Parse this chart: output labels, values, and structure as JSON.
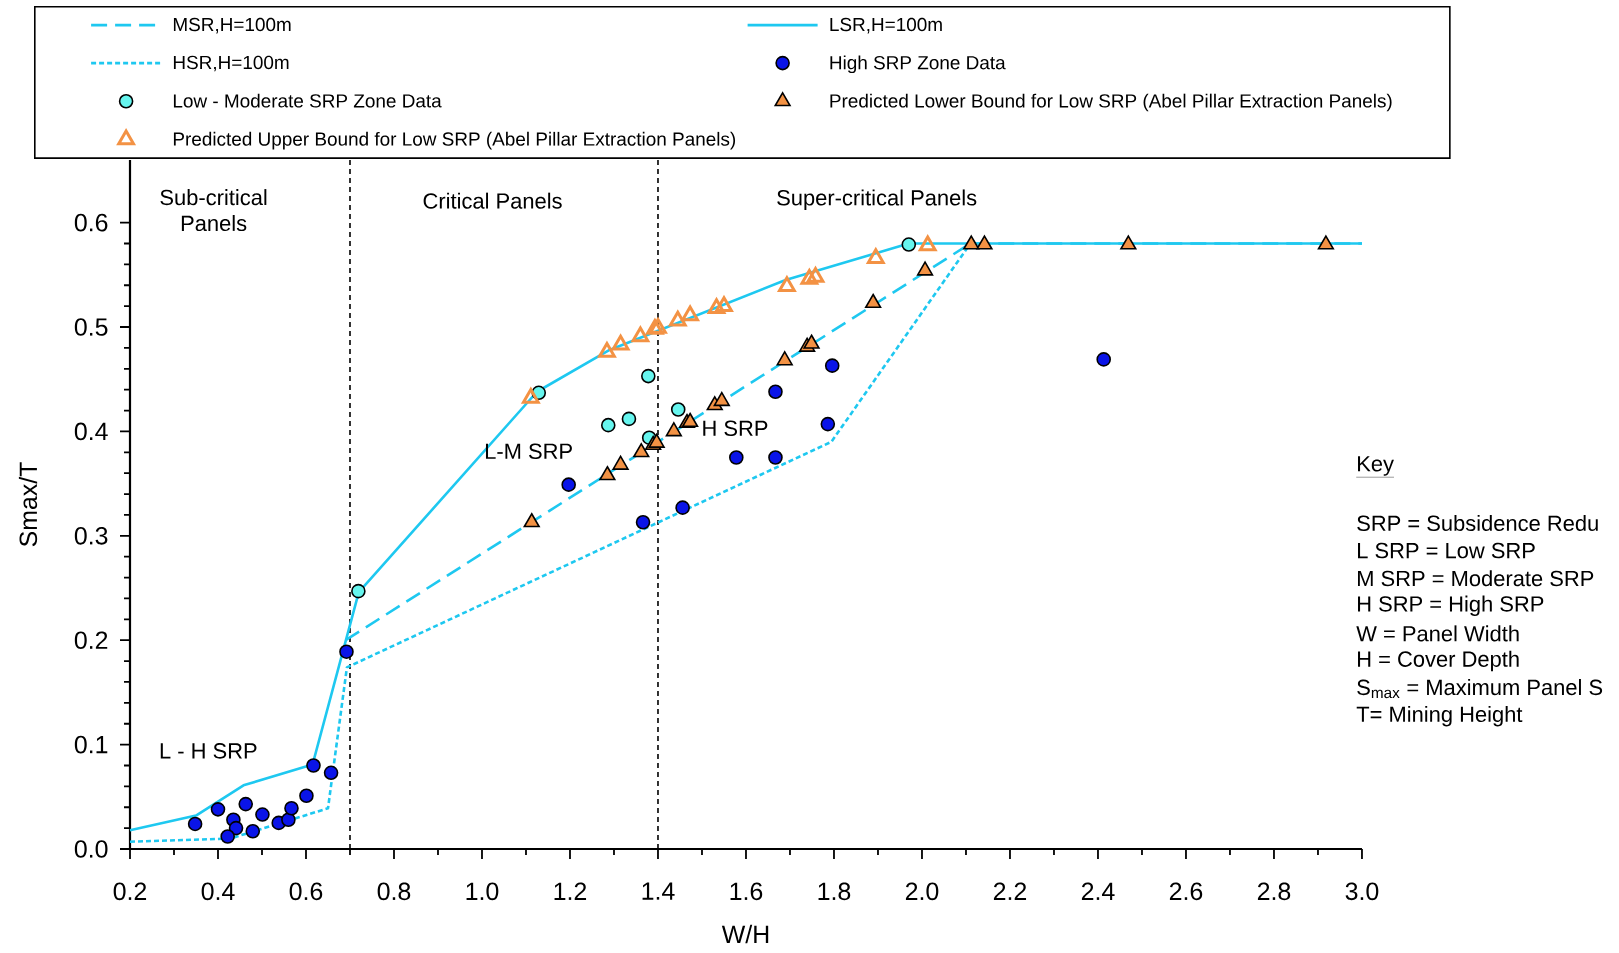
{
  "chart_data": {
    "type": "line",
    "xlabel": "W/H",
    "ylabel": "Smax/T",
    "xlim": [
      0.2,
      3.0
    ],
    "ylim": [
      0.0,
      0.66
    ],
    "xticks": [
      0.2,
      0.4,
      0.6,
      0.8,
      {
        "value": 1.0,
        "label": "1.0"
      },
      1.2,
      1.4,
      1.6,
      1.8,
      {
        "value": 2.0,
        "label": "2.0"
      },
      2.2,
      2.4,
      2.6,
      2.8,
      {
        "value": 3.0,
        "label": "3.0"
      }
    ],
    "yticks": [
      {
        "value": 0.0,
        "label": "0.0"
      },
      0.1,
      0.2,
      0.3,
      0.4,
      0.5,
      0.6
    ],
    "legend": "top",
    "series": [
      {
        "name": "MSR,H=100m",
        "type": "line",
        "color": "#1ec8f0",
        "line_style": "dashed",
        "marker": "none",
        "x": [
          0.69,
          2.11,
          3.0
        ],
        "values": [
          0.2,
          0.58,
          0.58
        ]
      },
      {
        "name": "LSR,H=100m",
        "type": "line",
        "color": "#1ec8f0",
        "line_style": "solid",
        "marker": "none",
        "x": [
          0.2,
          0.35,
          0.458,
          0.615,
          0.72,
          1.125,
          1.29,
          1.69,
          1.97,
          3.0
        ],
        "values": [
          0.018,
          0.032,
          0.061,
          0.081,
          0.246,
          0.438,
          0.478,
          0.545,
          0.58,
          0.58
        ]
      },
      {
        "name": "HSR,H=100m",
        "type": "line",
        "color": "#1ec8f0",
        "line_style": "dotted",
        "marker": "none",
        "x": [
          0.2,
          0.428,
          0.65,
          0.693,
          1.794,
          2.11
        ],
        "values": [
          0.007,
          0.01,
          0.039,
          0.174,
          0.39,
          0.58
        ]
      },
      {
        "name": "High SRP Zone Data",
        "type": "scatter",
        "color": "#0a14e8",
        "marker": "circle",
        "x": [
          0.348,
          0.4,
          0.435,
          0.441,
          0.422,
          0.463,
          0.501,
          0.479,
          0.538,
          0.56,
          0.567,
          0.601,
          0.617,
          0.657,
          0.692,
          1.197,
          1.366,
          1.456,
          1.578,
          1.667,
          1.667,
          1.786,
          1.796,
          2.413
        ],
        "values": [
          0.024,
          0.038,
          0.028,
          0.02,
          0.012,
          0.043,
          0.033,
          0.017,
          0.025,
          0.028,
          0.039,
          0.051,
          0.08,
          0.073,
          0.189,
          0.349,
          0.313,
          0.327,
          0.375,
          0.438,
          0.375,
          0.407,
          0.463,
          0.469
        ]
      },
      {
        "name": "Low - Moderate SRP Zone Data",
        "type": "scatter",
        "color": "#66f5ee",
        "marker": "circle",
        "x": [
          0.719,
          1.129,
          1.287,
          1.334,
          1.378,
          1.38,
          1.446,
          1.97
        ],
        "values": [
          0.247,
          0.437,
          0.406,
          0.412,
          0.453,
          0.394,
          0.421,
          0.579
        ]
      },
      {
        "name": "Predicted Lower Bound for Low SRP (Abel Pillar Extraction Panels)",
        "type": "scatter",
        "color": "#f39244",
        "marker": "triangle",
        "x": [
          1.113,
          1.285,
          1.315,
          1.362,
          1.389,
          1.397,
          1.436,
          1.466,
          1.473,
          1.529,
          1.545,
          1.688,
          1.739,
          1.749,
          1.889,
          2.007,
          2.112,
          2.142,
          2.469,
          2.918
        ],
        "values": [
          0.313,
          0.358,
          0.368,
          0.38,
          0.387,
          0.389,
          0.4,
          0.408,
          0.409,
          0.425,
          0.429,
          0.468,
          0.481,
          0.484,
          0.523,
          0.554,
          0.579,
          0.579,
          0.579,
          0.579
        ]
      },
      {
        "name": "Predicted Upper Bound for Low SRP (Abel Pillar Extraction Panels)",
        "type": "scatter",
        "color": "#f39244",
        "marker": "triangle",
        "x": [
          1.111,
          1.284,
          1.315,
          1.36,
          1.393,
          1.4,
          1.445,
          1.473,
          1.533,
          1.55,
          1.693,
          1.744,
          1.758,
          1.895,
          2.013
        ],
        "values": [
          0.432,
          0.476,
          0.483,
          0.491,
          0.498,
          0.499,
          0.506,
          0.511,
          0.518,
          0.52,
          0.539,
          0.546,
          0.548,
          0.566,
          0.578
        ]
      }
    ],
    "ref_lines": [
      {
        "axis": "x",
        "value": 0.7,
        "color": "#000000",
        "line_style": "dashed"
      },
      {
        "axis": "x",
        "value": 1.4,
        "color": "#000000",
        "line_style": "dashed"
      }
    ],
    "annotations": [
      "Sub-critical Panels",
      "Critical Panels",
      "Super-critical Panels",
      "L - H SRP",
      "L-M SRP",
      "H SRP",
      "Key",
      "SRP = Subsidence Redu",
      "L SRP = Low SRP",
      "M SRP = Moderate SRP",
      "H SRP = High SRP",
      "W = Panel Width",
      "H = Cover Depth",
      "S$_{max}$ = Maximum Panel S",
      "T= Mining Height"
    ]
  }
}
